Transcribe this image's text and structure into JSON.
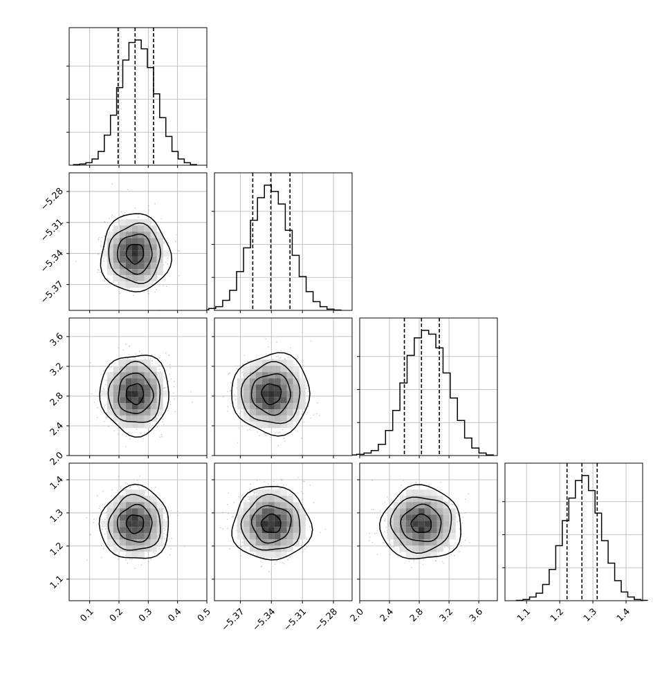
{
  "chart_data": {
    "type": "corner",
    "title": "",
    "grid": true,
    "colors": {
      "line": "#000000",
      "grid": "#b0b0b0",
      "scatter": "#9a9a9a"
    },
    "parameters": [
      {
        "range": [
          0.03,
          0.5
        ],
        "ticks": [
          0.1,
          0.2,
          0.3,
          0.4,
          0.5
        ],
        "tick_labels": [
          "0.1",
          "0.2",
          "0.3",
          "0.4",
          "0.5"
        ],
        "mean": 0.255,
        "sd": 0.05,
        "quantiles": [
          0.197,
          0.255,
          0.318
        ]
      },
      {
        "range": [
          -5.395,
          -5.262
        ],
        "ticks": [
          -5.37,
          -5.34,
          -5.31,
          -5.28
        ],
        "tick_labels": [
          "−5.37",
          "−5.34",
          "−5.31",
          "−5.28"
        ],
        "mean": -5.34,
        "sd": 0.016,
        "quantiles": [
          -5.358,
          -5.3405,
          -5.322
        ]
      },
      {
        "range": [
          2.0,
          3.85
        ],
        "ticks": [
          2.0,
          2.4,
          2.8,
          3.2,
          3.6
        ],
        "tick_labels": [
          "2.0",
          "2.4",
          "2.8",
          "3.2",
          "3.6"
        ],
        "mean": 2.83,
        "sd": 0.23,
        "quantiles": [
          2.6,
          2.83,
          3.07
        ]
      },
      {
        "range": [
          1.035,
          1.45
        ],
        "ticks": [
          1.1,
          1.2,
          1.3,
          1.4
        ],
        "tick_labels": [
          "1.1",
          "1.2",
          "1.3",
          "1.4"
        ],
        "mean": 1.267,
        "sd": 0.047,
        "quantiles": [
          1.222,
          1.267,
          1.313
        ]
      }
    ],
    "histograms": [
      {
        "param": 0,
        "bins": 20,
        "counts": [
          0.5,
          1,
          2,
          5,
          11,
          24,
          40,
          62,
          84,
          98,
          100,
          93,
          78,
          57,
          38,
          23,
          11,
          5,
          2,
          0.5
        ]
      },
      {
        "param": 1,
        "bins": 20,
        "counts": [
          0.5,
          1.5,
          3,
          8,
          16,
          31,
          50,
          72,
          90,
          100,
          95,
          85,
          64,
          44,
          27,
          15,
          7,
          3,
          1,
          0.3
        ]
      },
      {
        "param": 2,
        "bins": 20,
        "counts": [
          0.5,
          1,
          2,
          4,
          9,
          20,
          36,
          58,
          80,
          94,
          100,
          97,
          86,
          66,
          46,
          28,
          14,
          6,
          2,
          0.5
        ]
      },
      {
        "param": 3,
        "bins": 20,
        "counts": [
          0.3,
          1,
          3,
          6,
          13,
          25,
          44,
          64,
          82,
          96,
          100,
          88,
          70,
          48,
          30,
          16,
          7,
          3,
          1,
          0.3
        ]
      }
    ],
    "pairs": [
      {
        "x_param": 0,
        "y_param": 1,
        "correlation": 0.0
      },
      {
        "x_param": 0,
        "y_param": 2,
        "correlation": 0.0
      },
      {
        "x_param": 1,
        "y_param": 2,
        "correlation": 0.0
      },
      {
        "x_param": 0,
        "y_param": 3,
        "correlation": 0.0
      },
      {
        "x_param": 1,
        "y_param": 3,
        "correlation": 0.0
      },
      {
        "x_param": 2,
        "y_param": 3,
        "correlation": 0.0
      }
    ],
    "contour_levels_sigma": [
      0.5,
      1.0,
      1.5,
      2.0
    ]
  }
}
